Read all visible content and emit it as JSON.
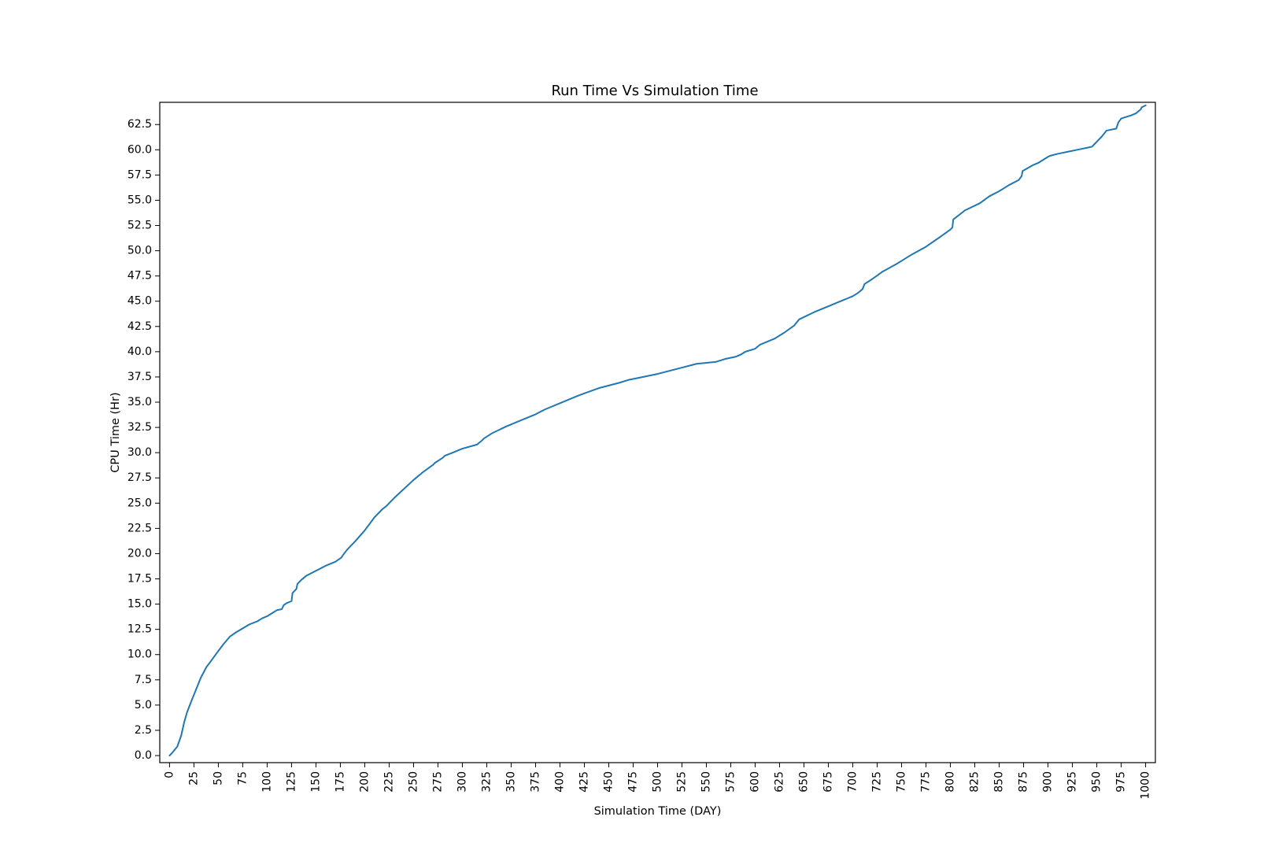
{
  "chart_data": {
    "type": "line",
    "title": "Run Time Vs Simulation Time",
    "xlabel": "Simulation Time (DAY)",
    "ylabel": "CPU Time (Hr)",
    "xlim": [
      -10,
      1010
    ],
    "ylim": [
      -0.7,
      64.7
    ],
    "grid": false,
    "legend": "none",
    "x_ticks": [
      0,
      25,
      50,
      75,
      100,
      125,
      150,
      175,
      200,
      225,
      250,
      275,
      300,
      325,
      350,
      375,
      400,
      425,
      450,
      475,
      500,
      525,
      550,
      575,
      600,
      625,
      650,
      675,
      700,
      725,
      750,
      775,
      800,
      825,
      850,
      875,
      900,
      925,
      950,
      975,
      1000
    ],
    "x_tick_labels": [
      "0",
      "25",
      "50",
      "75",
      "100",
      "125",
      "150",
      "175",
      "200",
      "225",
      "250",
      "275",
      "300",
      "325",
      "350",
      "375",
      "400",
      "425",
      "450",
      "475",
      "500",
      "525",
      "550",
      "575",
      "600",
      "625",
      "650",
      "675",
      "700",
      "725",
      "750",
      "775",
      "800",
      "825",
      "850",
      "875",
      "900",
      "925",
      "950",
      "975",
      "1000"
    ],
    "y_ticks": [
      0,
      2.5,
      5,
      7.5,
      10,
      12.5,
      15,
      17.5,
      20,
      22.5,
      25,
      27.5,
      30,
      32.5,
      35,
      37.5,
      40,
      42.5,
      45,
      47.5,
      50,
      52.5,
      55,
      57.5,
      60,
      62.5
    ],
    "y_tick_labels": [
      "0.0",
      "2.5",
      "5.0",
      "7.5",
      "10.0",
      "12.5",
      "15.0",
      "17.5",
      "20.0",
      "22.5",
      "25.0",
      "27.5",
      "30.0",
      "32.5",
      "35.0",
      "37.5",
      "40.0",
      "42.5",
      "45.0",
      "47.5",
      "50.0",
      "52.5",
      "55.0",
      "57.5",
      "60.0",
      "62.5"
    ],
    "series": [
      {
        "color": "#1f77b4",
        "x": [
          0,
          3,
          8,
          12,
          15,
          18,
          22,
          27,
          32,
          38,
          42,
          48,
          55,
          62,
          68,
          75,
          82,
          90,
          95,
          100,
          105,
          110,
          115,
          117,
          120,
          125,
          126,
          128,
          130,
          131,
          135,
          140,
          150,
          160,
          170,
          176,
          178,
          182,
          190,
          200,
          210,
          218,
          222,
          230,
          240,
          250,
          260,
          270,
          272,
          280,
          282,
          290,
          300,
          315,
          320,
          322,
          330,
          345,
          360,
          375,
          385,
          400,
          420,
          440,
          460,
          470,
          480,
          500,
          520,
          540,
          560,
          570,
          580,
          585,
          590,
          600,
          605,
          620,
          630,
          640,
          645,
          660,
          670,
          690,
          695,
          700,
          705,
          710,
          712,
          720,
          730,
          745,
          760,
          775,
          790,
          800,
          802,
          803,
          815,
          830,
          840,
          850,
          860,
          870,
          873,
          874,
          885,
          890,
          900,
          902,
          910,
          920,
          930,
          940,
          945,
          947,
          950,
          955,
          960,
          970,
          972,
          975,
          985,
          990,
          995,
          996,
          1000
        ],
        "y": [
          0,
          0.3,
          0.9,
          2.0,
          3.3,
          4.3,
          5.3,
          6.5,
          7.7,
          8.8,
          9.3,
          10.1,
          11.0,
          11.8,
          12.2,
          12.6,
          13.0,
          13.3,
          13.6,
          13.8,
          14.1,
          14.4,
          14.5,
          14.9,
          15.1,
          15.3,
          16.1,
          16.3,
          16.5,
          17.0,
          17.4,
          17.8,
          18.3,
          18.8,
          19.2,
          19.6,
          19.9,
          20.4,
          21.2,
          22.3,
          23.6,
          24.4,
          24.7,
          25.5,
          26.4,
          27.3,
          28.1,
          28.8,
          29.0,
          29.5,
          29.7,
          30.0,
          30.4,
          30.8,
          31.2,
          31.4,
          31.9,
          32.6,
          33.2,
          33.8,
          34.3,
          34.9,
          35.7,
          36.4,
          36.9,
          37.2,
          37.4,
          37.8,
          38.3,
          38.8,
          39.0,
          39.3,
          39.5,
          39.7,
          40.0,
          40.3,
          40.7,
          41.3,
          41.9,
          42.6,
          43.2,
          43.9,
          44.3,
          45.1,
          45.3,
          45.5,
          45.8,
          46.2,
          46.7,
          47.2,
          47.9,
          48.7,
          49.6,
          50.4,
          51.4,
          52.1,
          52.3,
          53.1,
          54.0,
          54.7,
          55.4,
          55.9,
          56.5,
          57.0,
          57.4,
          57.9,
          58.5,
          58.7,
          59.3,
          59.4,
          59.6,
          59.8,
          60.0,
          60.2,
          60.3,
          60.5,
          60.8,
          61.3,
          61.9,
          62.1,
          62.7,
          63.1,
          63.4,
          63.6,
          64.0,
          64.2,
          64.4
        ]
      }
    ]
  }
}
